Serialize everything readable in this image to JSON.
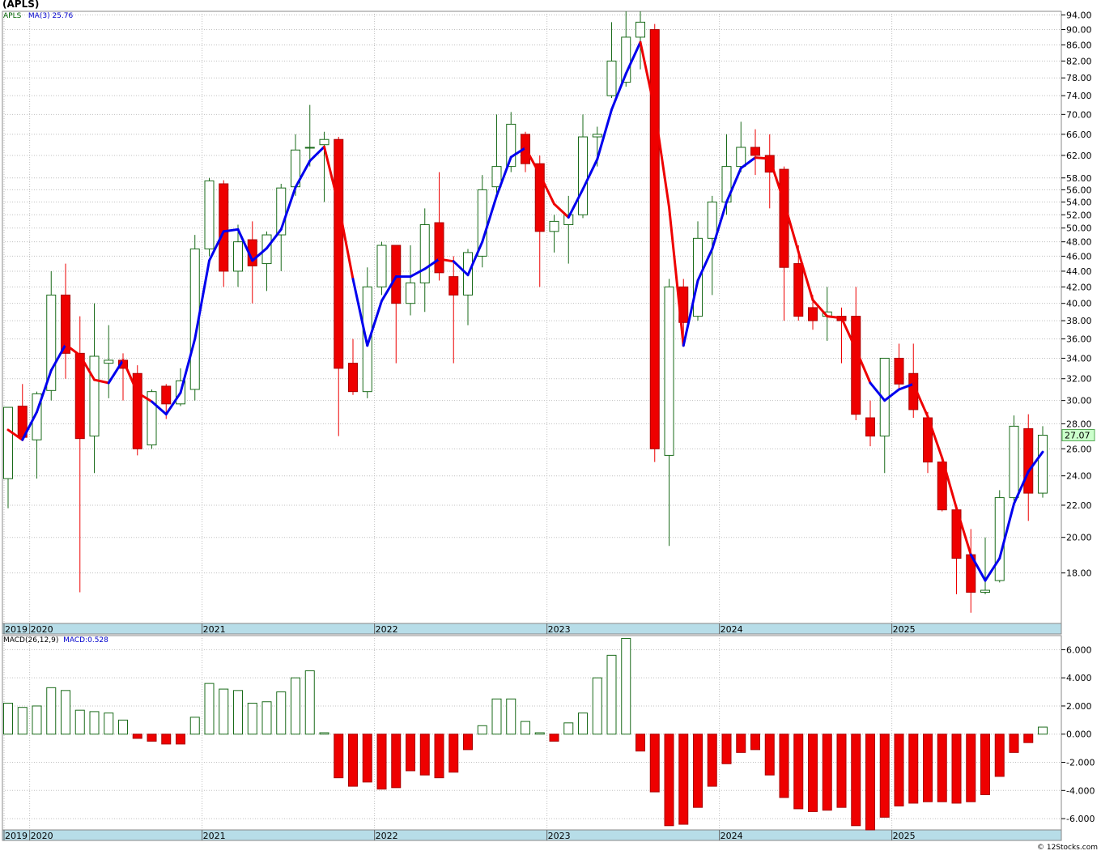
{
  "title": "(APLS)",
  "legend": {
    "symbol": "APLS",
    "ma_label": "MA(3)",
    "ma_value": "25.76"
  },
  "macd_legend": {
    "label": "MACD(26,12,9)",
    "value_label": "MACD:0.528"
  },
  "last_price": "27.07",
  "credit": "© 12Stocks.com",
  "colors": {
    "up": "#ffffff",
    "up_border": "#1a6b1a",
    "down": "#ee0000",
    "ma_up": "#0000ee",
    "ma_down": "#ee0000",
    "grid": "#c0c0c0",
    "axis_band": "#b7dde8",
    "price_box": "#ccffcc"
  },
  "chart_data": [
    {
      "type": "candlestick",
      "interval": "monthly",
      "yscale": "log",
      "ylim": [
        15.5,
        95
      ],
      "y_ticks": [
        18,
        20,
        22,
        24,
        26,
        28,
        30,
        32,
        34,
        36,
        38,
        40,
        42,
        44,
        46,
        48,
        50,
        52,
        54,
        56,
        58,
        62,
        66,
        70,
        74,
        78,
        82,
        86,
        90,
        94
      ],
      "y_tick_labels": [
        "18.00",
        "20.00",
        "22.00",
        "24.00",
        "26.00",
        "28.00",
        "30.00",
        "32.00",
        "34.00",
        "36.00",
        "38.00",
        "40.00",
        "42.00",
        "44.00",
        "46.00",
        "48.00",
        "50.00",
        "52.00",
        "54.00",
        "56.00",
        "58.00",
        "62.00",
        "66.00",
        "70.00",
        "74.00",
        "78.00",
        "82.00",
        "86.00",
        "90.00",
        "94.00"
      ],
      "year_labels": [
        "2019",
        "2020",
        "2021",
        "2022",
        "2023",
        "2024",
        "2025"
      ],
      "candles": [
        {
          "d": "2019-11",
          "o": 23.8,
          "h": 29.0,
          "l": 21.8,
          "c": 29.4
        },
        {
          "d": "2019-12",
          "o": 29.5,
          "h": 31.5,
          "l": 26.7,
          "c": 26.9
        },
        {
          "d": "2020-01",
          "o": 26.7,
          "h": 30.8,
          "l": 23.8,
          "c": 30.6
        },
        {
          "d": "2020-02",
          "o": 30.9,
          "h": 44.0,
          "l": 30.0,
          "c": 41.0
        },
        {
          "d": "2020-03",
          "o": 41.0,
          "h": 45.0,
          "l": 32.0,
          "c": 34.5
        },
        {
          "d": "2020-04",
          "o": 34.5,
          "h": 38.5,
          "l": 17.0,
          "c": 26.8
        },
        {
          "d": "2020-05",
          "o": 27.0,
          "h": 40.0,
          "l": 24.2,
          "c": 34.2
        },
        {
          "d": "2020-06",
          "o": 33.5,
          "h": 37.5,
          "l": 30.2,
          "c": 33.8
        },
        {
          "d": "2020-07",
          "o": 33.8,
          "h": 34.5,
          "l": 30.0,
          "c": 33.0
        },
        {
          "d": "2020-08",
          "o": 32.5,
          "h": 33.3,
          "l": 25.5,
          "c": 26.0
        },
        {
          "d": "2020-09",
          "o": 26.3,
          "h": 31.0,
          "l": 26.0,
          "c": 30.8
        },
        {
          "d": "2020-10",
          "o": 31.3,
          "h": 31.5,
          "l": 28.4,
          "c": 29.7
        },
        {
          "d": "2020-11",
          "o": 29.7,
          "h": 33.0,
          "l": 29.5,
          "c": 31.8
        },
        {
          "d": "2020-12",
          "o": 31.0,
          "h": 49.0,
          "l": 30.0,
          "c": 47.0
        },
        {
          "d": "2021-01",
          "o": 47.0,
          "h": 58.0,
          "l": 46.0,
          "c": 57.5
        },
        {
          "d": "2021-02",
          "o": 57.0,
          "h": 57.6,
          "l": 42.0,
          "c": 44.0
        },
        {
          "d": "2021-03",
          "o": 44.0,
          "h": 50.5,
          "l": 42.0,
          "c": 48.0
        },
        {
          "d": "2021-04",
          "o": 48.3,
          "h": 51.0,
          "l": 40.0,
          "c": 44.7
        },
        {
          "d": "2021-05",
          "o": 45.0,
          "h": 49.5,
          "l": 41.5,
          "c": 49.0
        },
        {
          "d": "2021-06",
          "o": 49.0,
          "h": 57.0,
          "l": 44.0,
          "c": 56.3
        },
        {
          "d": "2021-07",
          "o": 56.5,
          "h": 66.0,
          "l": 55.0,
          "c": 63.0
        },
        {
          "d": "2021-08",
          "o": 63.5,
          "h": 72.0,
          "l": 60.0,
          "c": 63.5
        },
        {
          "d": "2021-09",
          "o": 64.0,
          "h": 66.5,
          "l": 54.0,
          "c": 65.0
        },
        {
          "d": "2021-10",
          "o": 65.0,
          "h": 65.5,
          "l": 27.0,
          "c": 33.0
        },
        {
          "d": "2021-11",
          "o": 33.5,
          "h": 36.0,
          "l": 30.5,
          "c": 30.8
        },
        {
          "d": "2021-12",
          "o": 30.8,
          "h": 44.5,
          "l": 30.2,
          "c": 42.0
        },
        {
          "d": "2022-01",
          "o": 42.0,
          "h": 48.0,
          "l": 41.0,
          "c": 47.5
        },
        {
          "d": "2022-02",
          "o": 47.5,
          "h": 47.5,
          "l": 33.5,
          "c": 40.0
        },
        {
          "d": "2022-03",
          "o": 40.0,
          "h": 47.5,
          "l": 38.6,
          "c": 42.5
        },
        {
          "d": "2022-04",
          "o": 42.5,
          "h": 53.0,
          "l": 39.0,
          "c": 50.5
        },
        {
          "d": "2022-05",
          "o": 50.8,
          "h": 59.0,
          "l": 42.8,
          "c": 43.8
        },
        {
          "d": "2022-06",
          "o": 43.3,
          "h": 46.0,
          "l": 33.5,
          "c": 41.0
        },
        {
          "d": "2022-07",
          "o": 41.0,
          "h": 47.0,
          "l": 37.5,
          "c": 46.5
        },
        {
          "d": "2022-08",
          "o": 46.0,
          "h": 58.5,
          "l": 44.5,
          "c": 56.0
        },
        {
          "d": "2022-09",
          "o": 56.5,
          "h": 70.0,
          "l": 54.5,
          "c": 60.0
        },
        {
          "d": "2022-10",
          "o": 60.0,
          "h": 70.5,
          "l": 59.0,
          "c": 68.0
        },
        {
          "d": "2022-11",
          "o": 66.0,
          "h": 66.5,
          "l": 59.0,
          "c": 60.5
        },
        {
          "d": "2022-12",
          "o": 60.5,
          "h": 62.0,
          "l": 42.0,
          "c": 49.5
        },
        {
          "d": "2023-01",
          "o": 49.5,
          "h": 52.0,
          "l": 46.5,
          "c": 51.0
        },
        {
          "d": "2023-02",
          "o": 50.5,
          "h": 55.0,
          "l": 45.0,
          "c": 52.0
        },
        {
          "d": "2023-03",
          "o": 52.0,
          "h": 70.0,
          "l": 51.5,
          "c": 65.5
        },
        {
          "d": "2023-04",
          "o": 65.5,
          "h": 67.5,
          "l": 60.0,
          "c": 66.0
        },
        {
          "d": "2023-05",
          "o": 74.0,
          "h": 92.0,
          "l": 73.5,
          "c": 82.0
        },
        {
          "d": "2023-06",
          "o": 77.0,
          "h": 95.0,
          "l": 76.0,
          "c": 88.0
        },
        {
          "d": "2023-07",
          "o": 88.0,
          "h": 95.0,
          "l": 80.0,
          "c": 92.0
        },
        {
          "d": "2023-08",
          "o": 90.0,
          "h": 91.5,
          "l": 25.0,
          "c": 26.0
        },
        {
          "d": "2023-09",
          "o": 25.5,
          "h": 43.0,
          "l": 19.5,
          "c": 42.0
        },
        {
          "d": "2023-10",
          "o": 42.0,
          "h": 43.0,
          "l": 35.5,
          "c": 37.8
        },
        {
          "d": "2023-11",
          "o": 38.5,
          "h": 51.0,
          "l": 38.0,
          "c": 48.5
        },
        {
          "d": "2023-12",
          "o": 48.5,
          "h": 55.0,
          "l": 41.0,
          "c": 54.0
        },
        {
          "d": "2024-01",
          "o": 54.0,
          "h": 66.0,
          "l": 52.0,
          "c": 60.0
        },
        {
          "d": "2024-02",
          "o": 60.0,
          "h": 68.5,
          "l": 59.0,
          "c": 63.5
        },
        {
          "d": "2024-03",
          "o": 63.5,
          "h": 67.0,
          "l": 58.5,
          "c": 62.0
        },
        {
          "d": "2024-04",
          "o": 62.0,
          "h": 66.0,
          "l": 53.0,
          "c": 59.0
        },
        {
          "d": "2024-05",
          "o": 59.5,
          "h": 60.0,
          "l": 38.0,
          "c": 44.5
        },
        {
          "d": "2024-06",
          "o": 45.0,
          "h": 47.5,
          "l": 38.0,
          "c": 38.5
        },
        {
          "d": "2024-07",
          "o": 39.5,
          "h": 41.0,
          "l": 37.0,
          "c": 38.0
        },
        {
          "d": "2024-08",
          "o": 38.5,
          "h": 42.0,
          "l": 35.8,
          "c": 39.0
        },
        {
          "d": "2024-09",
          "o": 38.5,
          "h": 39.5,
          "l": 33.5,
          "c": 38.0
        },
        {
          "d": "2024-10",
          "o": 38.5,
          "h": 42.0,
          "l": 28.3,
          "c": 28.8
        },
        {
          "d": "2024-11",
          "o": 28.5,
          "h": 30.0,
          "l": 26.2,
          "c": 27.0
        },
        {
          "d": "2024-12",
          "o": 27.0,
          "h": 34.0,
          "l": 24.2,
          "c": 34.0
        },
        {
          "d": "2025-01",
          "o": 34.0,
          "h": 35.5,
          "l": 31.0,
          "c": 31.5
        },
        {
          "d": "2025-02",
          "o": 32.5,
          "h": 35.5,
          "l": 28.5,
          "c": 29.2
        },
        {
          "d": "2025-03",
          "o": 28.5,
          "h": 29.0,
          "l": 24.2,
          "c": 25.0
        },
        {
          "d": "2025-04",
          "o": 25.0,
          "h": 25.5,
          "l": 21.6,
          "c": 21.7
        },
        {
          "d": "2025-05",
          "o": 21.7,
          "h": 22.0,
          "l": 16.9,
          "c": 18.8
        },
        {
          "d": "2025-06",
          "o": 19.0,
          "h": 20.5,
          "l": 16.0,
          "c": 17.0
        },
        {
          "d": "2025-07",
          "o": 17.0,
          "h": 20.0,
          "l": 16.9,
          "c": 17.1
        },
        {
          "d": "2025-08",
          "o": 17.6,
          "h": 23.0,
          "l": 17.5,
          "c": 22.5
        },
        {
          "d": "2025-09",
          "o": 22.5,
          "h": 28.7,
          "l": 22.3,
          "c": 27.8
        },
        {
          "d": "2025-10",
          "o": 27.6,
          "h": 28.8,
          "l": 21.0,
          "c": 22.8
        },
        {
          "d": "2025-11",
          "o": 22.8,
          "h": 27.8,
          "l": 22.5,
          "c": 27.07
        }
      ],
      "ma3": [
        27.5,
        26.7,
        29.0,
        32.8,
        35.4,
        34.3,
        31.9,
        31.6,
        33.8,
        30.7,
        29.9,
        28.8,
        30.7,
        36.0,
        45.4,
        49.5,
        49.8,
        45.4,
        47.1,
        49.8,
        56.4,
        61.0,
        63.6,
        53.6,
        43.0,
        35.3,
        40.3,
        43.3,
        43.3,
        44.3,
        45.6,
        45.3,
        43.5,
        48.0,
        55.0,
        61.7,
        63.4,
        58.6,
        53.7,
        51.6,
        56.1,
        61.3,
        71.0,
        79.0,
        86.7,
        71.0,
        53.2,
        35.3,
        42.8,
        47.0,
        54.0,
        59.7,
        61.6,
        61.4,
        54.0,
        46.6,
        40.4,
        38.5,
        38.3,
        34.9,
        31.6,
        30.0,
        31.0,
        31.5,
        28.6,
        25.3,
        21.8,
        19.0,
        17.6,
        18.8,
        22.1,
        24.3,
        25.76
      ],
      "ma_color": [
        "down",
        "down",
        "up",
        "up",
        "up",
        "down",
        "down",
        "down",
        "up",
        "down",
        "down",
        "up",
        "up",
        "up",
        "up",
        "up",
        "up",
        "up",
        "up",
        "up",
        "up",
        "up",
        "up",
        "down",
        "down",
        "up",
        "up",
        "up",
        "up",
        "up",
        "up",
        "down",
        "up",
        "up",
        "up",
        "up",
        "up",
        "down",
        "down",
        "down",
        "up",
        "up",
        "up",
        "up",
        "up",
        "down",
        "down",
        "down",
        "up",
        "up",
        "up",
        "up",
        "up",
        "down",
        "down",
        "down",
        "down",
        "down",
        "down",
        "down",
        "down",
        "up",
        "up",
        "up",
        "down",
        "down",
        "down",
        "down",
        "up",
        "up",
        "up",
        "up",
        "up"
      ]
    },
    {
      "type": "bar",
      "name": "MACD(26,12,9)",
      "ylim": [
        -6.8,
        7.0
      ],
      "y_ticks": [
        -6,
        -4,
        -2,
        0,
        2,
        4,
        6
      ],
      "y_tick_labels": [
        "-6.000",
        "-4.000",
        "-2.000",
        "0.000",
        "2.000",
        "4.000",
        "6.000"
      ],
      "year_labels": [
        "2019",
        "2020",
        "2021",
        "2022",
        "2023",
        "2024",
        "2025"
      ],
      "values": [
        2.2,
        1.9,
        2.0,
        3.3,
        3.1,
        1.7,
        1.6,
        1.5,
        1.0,
        -0.3,
        -0.5,
        -0.7,
        -0.7,
        1.2,
        3.6,
        3.2,
        3.1,
        2.2,
        2.3,
        3.0,
        4.0,
        4.5,
        0.1,
        -3.1,
        -3.7,
        -3.4,
        -3.9,
        -3.8,
        -2.6,
        -2.9,
        -3.1,
        -2.7,
        -1.1,
        0.6,
        2.5,
        2.5,
        0.9,
        0.1,
        -0.5,
        0.8,
        1.5,
        4.0,
        5.6,
        6.8,
        -1.2,
        -4.1,
        -6.5,
        -6.4,
        -5.2,
        -3.7,
        -2.1,
        -1.3,
        -1.1,
        -2.9,
        -4.5,
        -5.3,
        -5.5,
        -5.4,
        -5.2,
        -6.5,
        -6.8,
        -5.9,
        -5.1,
        -4.9,
        -4.8,
        -4.8,
        -4.9,
        -4.8,
        -4.3,
        -3.0,
        -1.3,
        -0.6,
        0.5
      ]
    }
  ]
}
